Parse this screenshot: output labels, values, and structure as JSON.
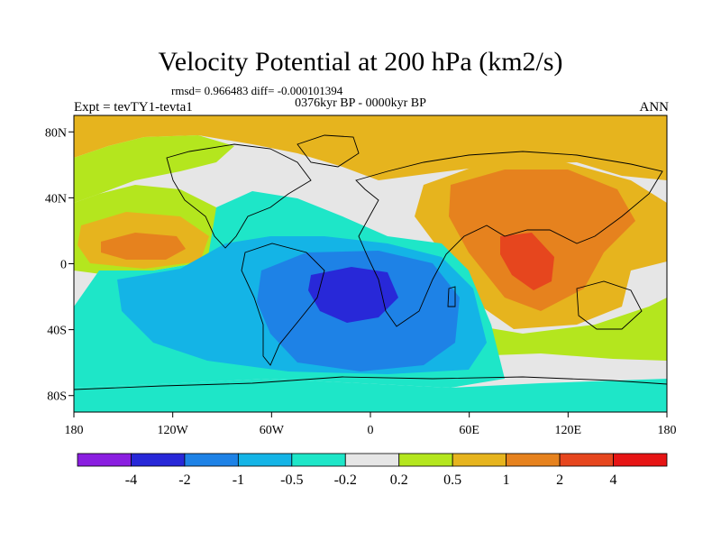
{
  "title": "Velocity Potential at 200 hPa (km2/s)",
  "stats": "rmsd= 0.966483 diff= -0.000101394",
  "experiment": "Expt = tevTY1-tevta1",
  "period": "0376kyr BP - 0000kyr BP",
  "season": "ANN",
  "map": {
    "lon_labels": [
      "180",
      "120W",
      "60W",
      "0",
      "60E",
      "120E",
      "180"
    ],
    "lon_values": [
      -180,
      -120,
      -60,
      0,
      60,
      120,
      180
    ],
    "lat_labels": [
      "80N",
      "40N",
      "0",
      "40S",
      "80S"
    ],
    "lat_values": [
      80,
      40,
      0,
      -40,
      -80
    ],
    "lat_range": [
      -90,
      90
    ],
    "lon_range": [
      -180,
      180
    ]
  },
  "colorbar": {
    "labels": [
      "-4",
      "-2",
      "-1",
      "-0.5",
      "-0.2",
      "0.2",
      "0.5",
      "1",
      "2",
      "4"
    ],
    "colors": [
      "#8a1ee0",
      "#2828d8",
      "#1e82e6",
      "#14b4e6",
      "#1ee6c8",
      "#e6e6e6",
      "#b4e61e",
      "#e6b41e",
      "#e6821e",
      "#e6461e",
      "#e61414"
    ]
  },
  "field_colors": {
    "strong_negative": "#2828d8",
    "negative": "#1e82e6",
    "weak_negative": "#14b4e6",
    "slight_negative": "#1ee6c8",
    "neutral": "#e6e6e6",
    "slight_positive": "#b4e61e",
    "weak_positive": "#e6b41e",
    "positive": "#e6821e",
    "strong_positive": "#e6461e"
  }
}
